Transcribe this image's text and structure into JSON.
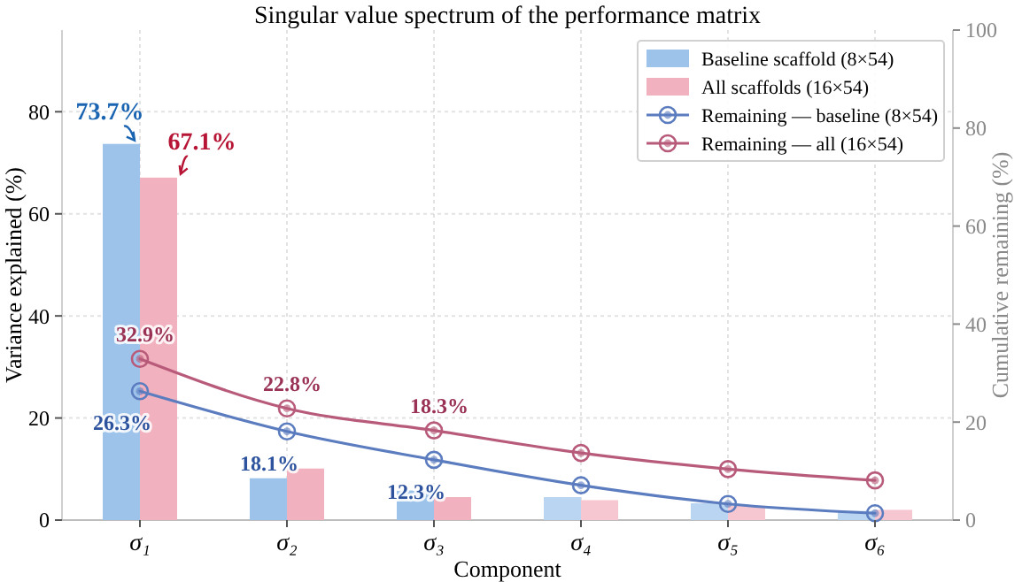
{
  "chart_data": {
    "type": "bar",
    "title": "Singular value spectrum of the performance matrix",
    "xlabel": "Component",
    "ylabel": "Variance explained (%)",
    "y2label": "Cumulative remaining (%)",
    "categories": [
      "σ₁",
      "σ₂",
      "σ₃",
      "σ₄",
      "σ₅",
      "σ₆"
    ],
    "series": [
      {
        "name": "Baseline scaffold (8×54)",
        "colors": [
          "#9dc3eb",
          "#9dc3eb",
          "#9dc3eb",
          "#b9d5f1",
          "#b9d5f1",
          "#b9d5f1"
        ],
        "color": "#9dc3eb",
        "values": [
          73.7,
          8.2,
          5.8,
          4.5,
          3.3,
          1.8
        ],
        "value_labels": [
          "73.7%",
          null,
          null,
          null,
          null,
          null
        ]
      },
      {
        "name": "All scaffolds (16×54)",
        "colors": [
          "#f2b1be",
          "#f2b1be",
          "#f2b1be",
          "#f6c7d1",
          "#f6c7d1",
          "#f6c7d1"
        ],
        "color": "#f2b1be",
        "values": [
          67.1,
          10.1,
          4.5,
          3.9,
          2.8,
          2.0
        ],
        "value_labels": [
          "67.1%",
          null,
          null,
          null,
          null,
          null
        ]
      },
      {
        "name": "Remaining — baseline (8×54)",
        "type": "line",
        "axis": "y2",
        "color": "#5b7cbf",
        "values": [
          26.3,
          18.1,
          12.3,
          7.1,
          3.3,
          1.4
        ],
        "value_labels": [
          "26.3%",
          "18.1%",
          "12.3%",
          null,
          null,
          null
        ]
      },
      {
        "name": "Remaining — all (16×54)",
        "type": "line",
        "axis": "y2",
        "color": "#b85b7a",
        "values": [
          32.9,
          22.8,
          18.3,
          13.7,
          10.4,
          8.1
        ],
        "value_labels": [
          "32.9%",
          "22.8%",
          "18.3%",
          null,
          null,
          null
        ]
      }
    ],
    "ylim": [
      0,
      96
    ],
    "yticks": [
      0,
      20,
      40,
      60,
      80
    ],
    "y2lim": [
      0,
      100
    ],
    "y2ticks": [
      0,
      20,
      40,
      60,
      80,
      100
    ],
    "grid": true,
    "legend": "top right",
    "marker": "circle",
    "line_style": "solid"
  }
}
